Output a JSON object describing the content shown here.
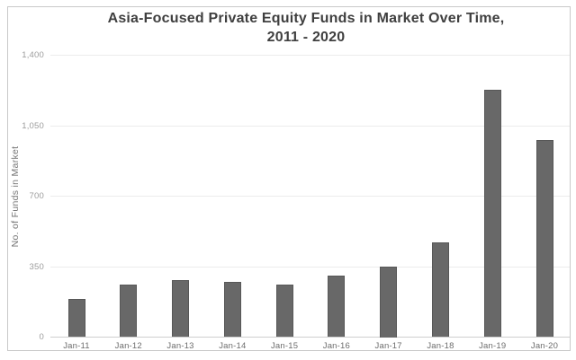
{
  "chart": {
    "title_line1": "Asia-Focused Private Equity Funds in Market Over Time,",
    "title_line2": "2011 - 2020"
  },
  "chart_data": {
    "type": "bar",
    "title": "Asia-Focused Private Equity Funds in Market Over Time, 2011 - 2020",
    "categories": [
      "Jan-11",
      "Jan-12",
      "Jan-13",
      "Jan-14",
      "Jan-15",
      "Jan-16",
      "Jan-17",
      "Jan-18",
      "Jan-19",
      "Jan-20"
    ],
    "values": [
      190,
      260,
      285,
      275,
      260,
      305,
      350,
      470,
      1230,
      980
    ],
    "xlabel": "",
    "ylabel": "No. of Funds in Market",
    "ylim": [
      0,
      1400
    ],
    "yticks": [
      0,
      350,
      700,
      1050,
      1400
    ],
    "ytick_labels": [
      "0",
      "350",
      "700",
      "1,050",
      "1,400"
    ],
    "grid": true,
    "legend": false,
    "bar_color": "#686868",
    "bar_border_color": "#575757",
    "title_color": "#3f3f3f",
    "gridline_color": "#ececec",
    "axis_line_color": "#cfcfcf"
  }
}
